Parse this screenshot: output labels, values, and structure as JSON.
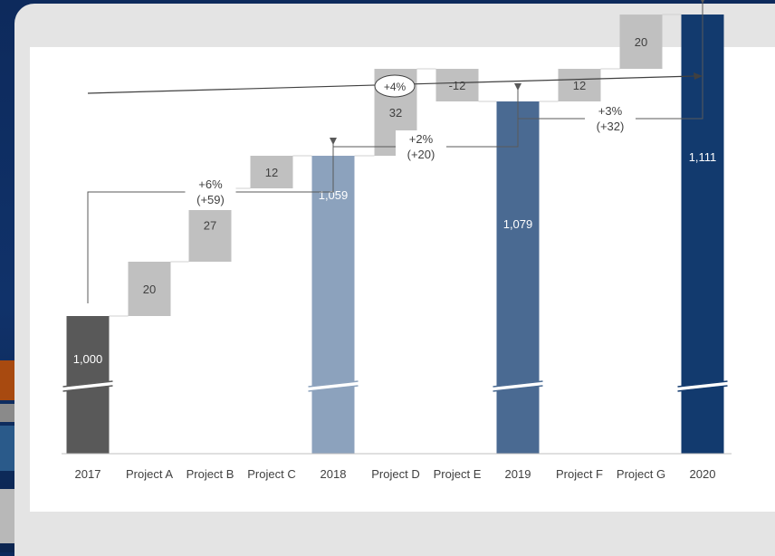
{
  "chart_data": {
    "type": "bar",
    "subtype": "waterfall",
    "categories": [
      "2017",
      "Project A",
      "Project B",
      "Project C",
      "2018",
      "Project D",
      "Project E",
      "2019",
      "Project F",
      "Project G",
      "2020"
    ],
    "values": [
      1000,
      20,
      27,
      12,
      1059,
      32,
      -12,
      1079,
      12,
      20,
      1111
    ],
    "value_labels": [
      "1,000",
      "20",
      "27",
      "12",
      "1,059",
      "32",
      "-12",
      "1,079",
      "12",
      "20",
      "1,111"
    ],
    "kind": [
      "total",
      "delta",
      "delta",
      "delta",
      "total",
      "delta",
      "delta",
      "total",
      "delta",
      "delta",
      "total"
    ],
    "colors": {
      "2017": "#595959",
      "2018": "#8ca2bd",
      "2019": "#4a6a92",
      "2020": "#123a6e",
      "delta": "#c0c0c0"
    },
    "axis_break": true,
    "brackets": [
      {
        "from": "2017",
        "to": "2018",
        "pct": "+6%",
        "abs": "(+59)"
      },
      {
        "from": "2018",
        "to": "2019",
        "pct": "+2%",
        "abs": "(+20)"
      },
      {
        "from": "2019",
        "to": "2020",
        "pct": "+3%",
        "abs": "(+32)"
      }
    ],
    "overall_cagr": "+4%",
    "title": "",
    "xlabel": "",
    "ylabel": ""
  }
}
